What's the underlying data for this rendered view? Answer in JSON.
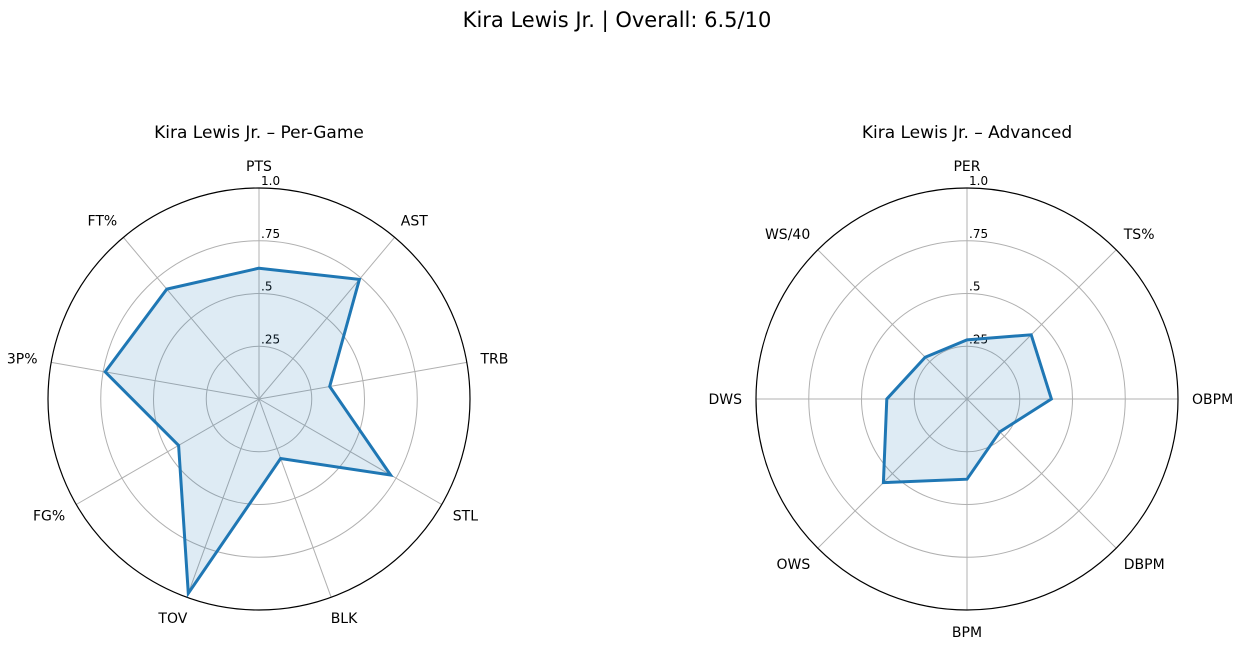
{
  "figure": {
    "suptitle": "Kira Lewis Jr. | Overall: 6.5/10"
  },
  "chart_data": [
    {
      "type": "radar",
      "title": "Kira Lewis Jr. – Per-Game",
      "categories": [
        "PTS",
        "AST",
        "TRB",
        "STL",
        "BLK",
        "TOV",
        "FG%",
        "3P%",
        "FT%"
      ],
      "values": [
        0.62,
        0.74,
        0.34,
        0.72,
        0.3,
        0.98,
        0.44,
        0.74,
        0.68
      ],
      "rlim": [
        0,
        1
      ],
      "rticks": [
        ".25",
        ".5",
        ".75",
        "1.0"
      ],
      "grid": true,
      "line_color": "#1f77b4",
      "fill_color": "#1f77b4"
    },
    {
      "type": "radar",
      "title": "Kira Lewis Jr. – Advanced",
      "categories": [
        "PER",
        "TS%",
        "OBPM",
        "DBPM",
        "BPM",
        "OWS",
        "DWS",
        "WS/40"
      ],
      "values": [
        0.28,
        0.43,
        0.4,
        0.22,
        0.38,
        0.56,
        0.38,
        0.28
      ],
      "rlim": [
        0,
        1
      ],
      "rticks": [
        ".25",
        ".5",
        ".75",
        "1.0"
      ],
      "grid": true,
      "line_color": "#1f77b4",
      "fill_color": "#1f77b4"
    }
  ]
}
